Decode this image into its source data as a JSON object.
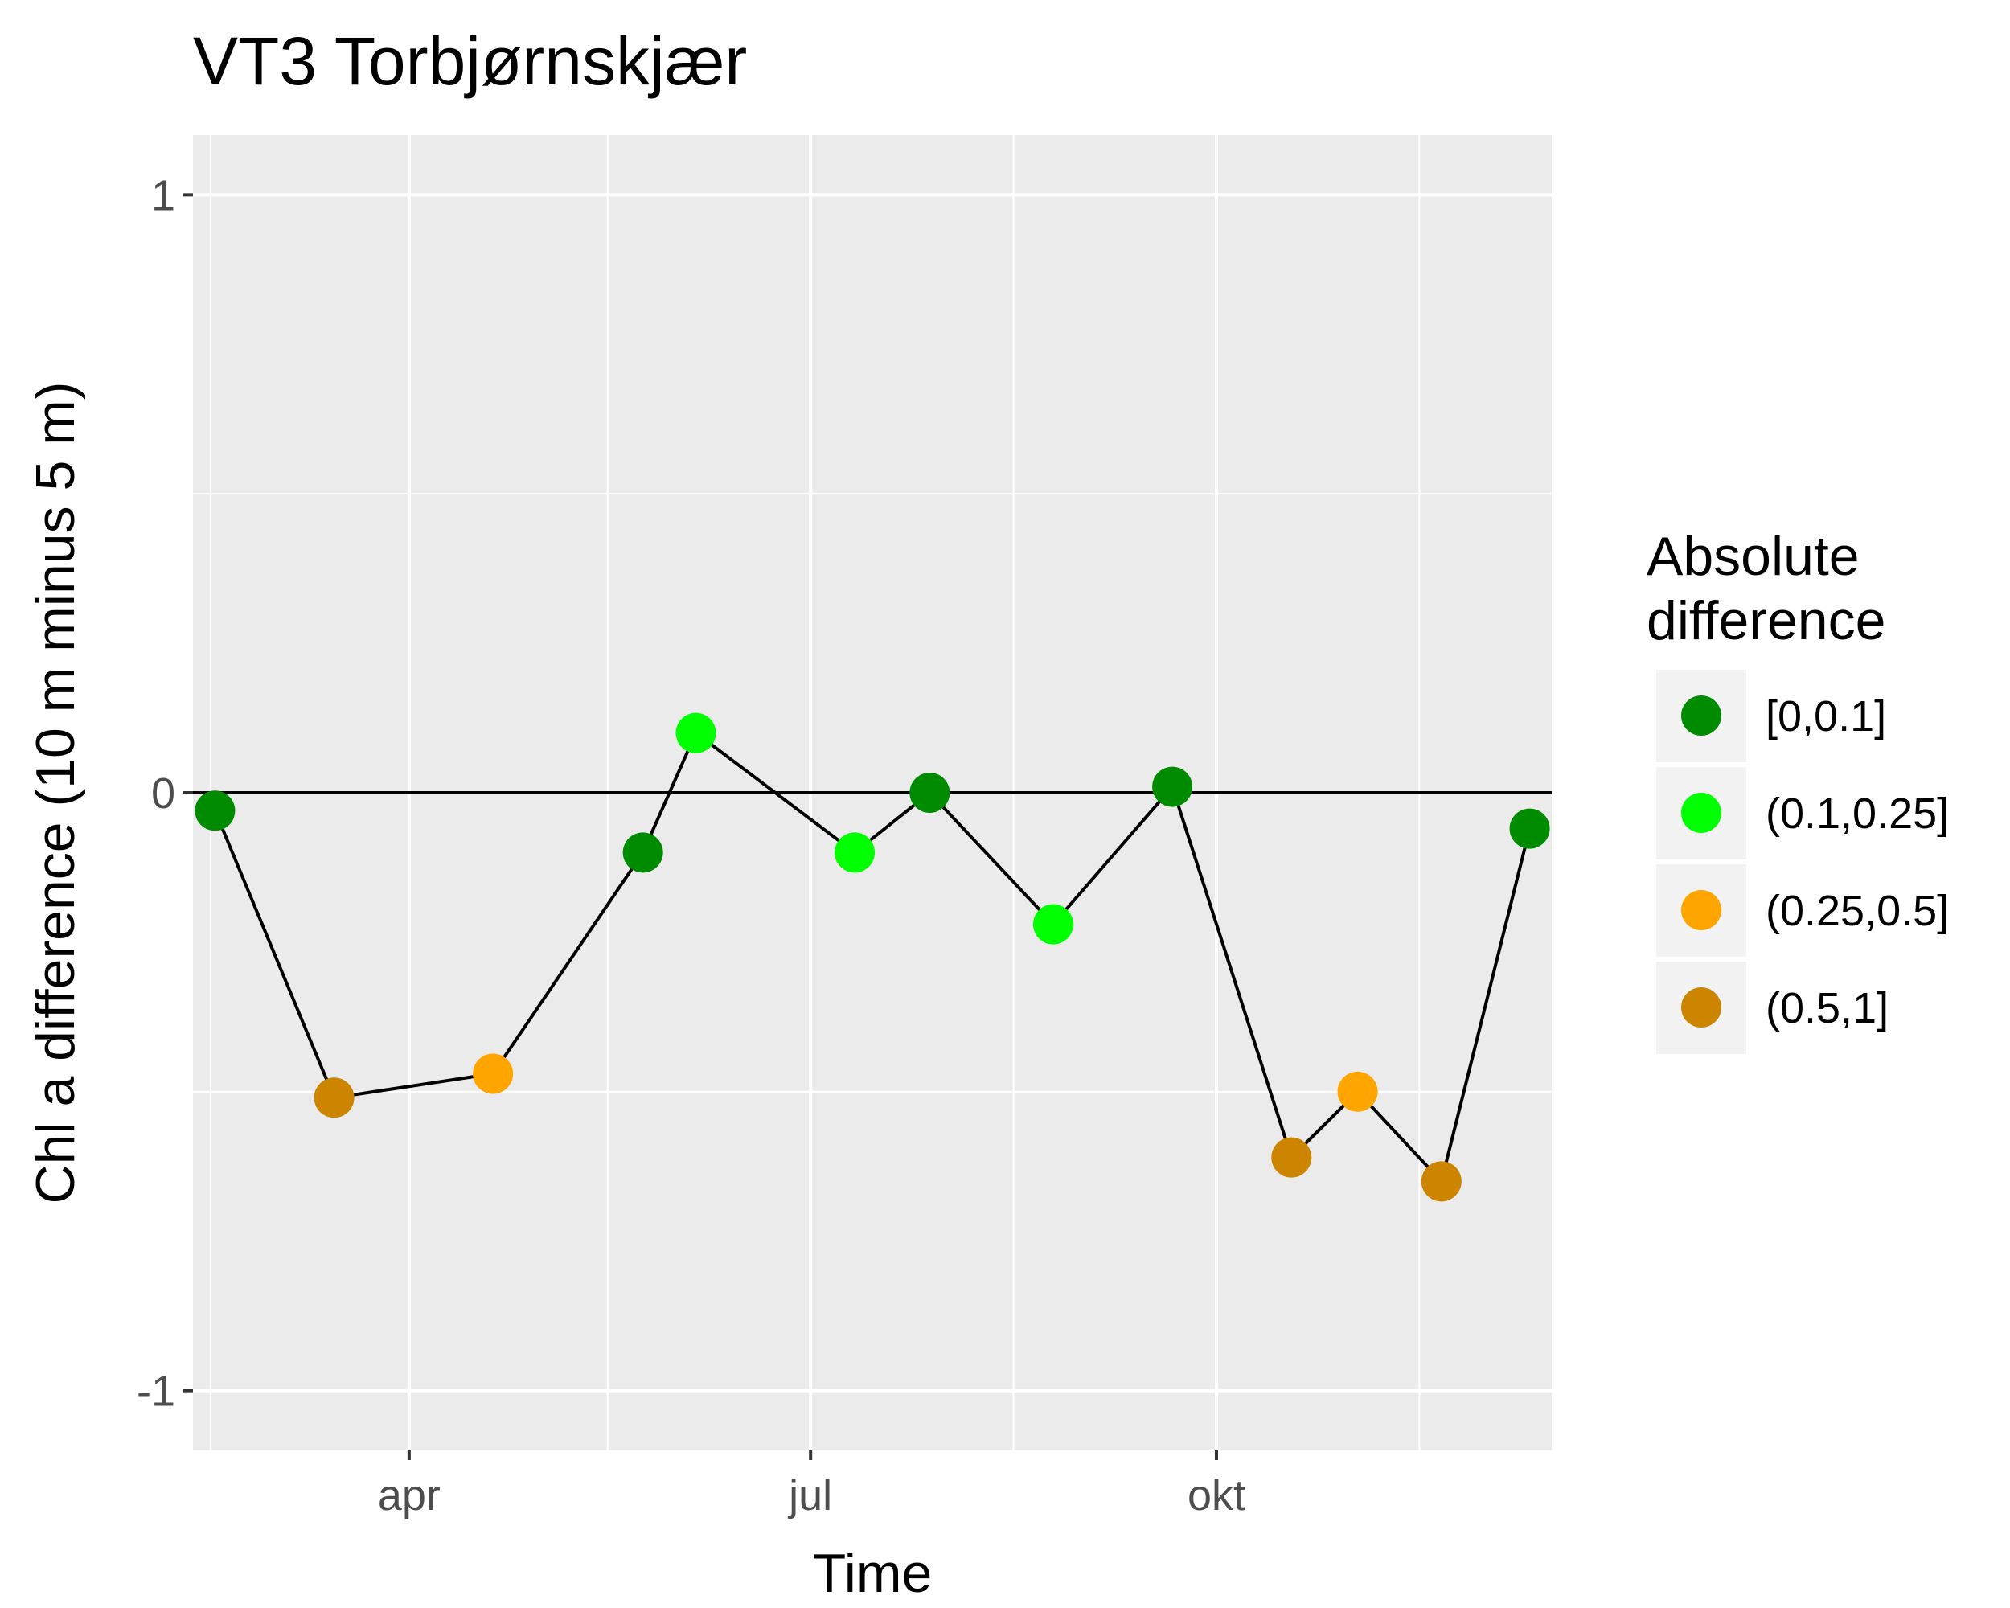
{
  "chart_data": {
    "type": "scatter",
    "title": "VT3 Torbjørnskjær",
    "xlabel": "Time",
    "ylabel": "Chl a difference (10 m minus 5 m)",
    "xlim": [
      "2017-02-11",
      "2017-12-16"
    ],
    "ylim": [
      -1.1,
      1.1
    ],
    "y_ticks": [
      -1,
      0,
      1
    ],
    "y_tick_labels": [
      "-1",
      "0",
      "1"
    ],
    "x_ticks": [
      "2017-04-01",
      "2017-07-01",
      "2017-10-01"
    ],
    "x_tick_labels": [
      "apr",
      "jul",
      "okt"
    ],
    "x_minor_gridlines": [
      "2017-02-15",
      "2017-05-16",
      "2017-08-16",
      "2017-11-16"
    ],
    "y_minor_gridlines": [
      -0.5,
      0.5
    ],
    "reference_line_y": 0,
    "grid": true,
    "legend_position": "right",
    "legend_title": "Absolute difference",
    "categories": [
      {
        "label": "[0,0.1]",
        "color": "#008B00"
      },
      {
        "label": "(0.1,0.25]",
        "color": "#00FF00"
      },
      {
        "label": "(0.25,0.5]",
        "color": "#FFA500"
      },
      {
        "label": "(0.5,1]",
        "color": "#CD8500"
      }
    ],
    "points": [
      {
        "x": "2017-02-16",
        "y": -0.03,
        "category": 0
      },
      {
        "x": "2017-03-15",
        "y": -0.51,
        "category": 3
      },
      {
        "x": "2017-04-20",
        "y": -0.47,
        "category": 2
      },
      {
        "x": "2017-05-24",
        "y": -0.1,
        "category": 0
      },
      {
        "x": "2017-06-05",
        "y": 0.1,
        "category": 1
      },
      {
        "x": "2017-07-11",
        "y": -0.1,
        "category": 1
      },
      {
        "x": "2017-07-28",
        "y": 0.0,
        "category": 0
      },
      {
        "x": "2017-08-25",
        "y": -0.22,
        "category": 1
      },
      {
        "x": "2017-09-21",
        "y": 0.01,
        "category": 0
      },
      {
        "x": "2017-10-18",
        "y": -0.61,
        "category": 3
      },
      {
        "x": "2017-11-02",
        "y": -0.5,
        "category": 2
      },
      {
        "x": "2017-11-21",
        "y": -0.65,
        "category": 3
      },
      {
        "x": "2017-12-11",
        "y": -0.06,
        "category": 0
      }
    ]
  }
}
